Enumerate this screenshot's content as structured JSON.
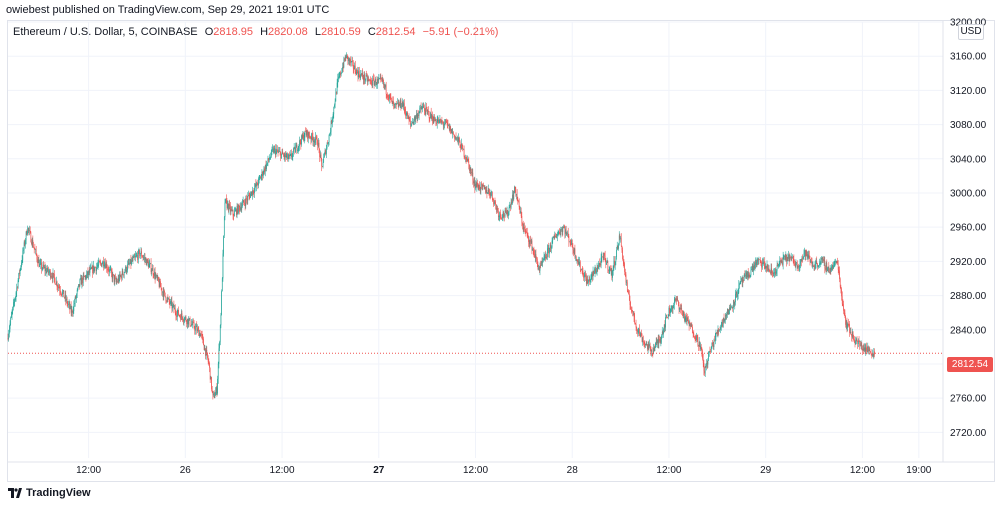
{
  "header": {
    "published_line": "owiebest published on TradingView.com, Sep 29, 2021 19:01 UTC"
  },
  "legend": {
    "symbol": "Ethereum / U.S. Dollar, 5, COINBASE",
    "o_label": "O",
    "o_value": "2818.95",
    "h_label": "H",
    "h_value": "2820.08",
    "l_label": "L",
    "l_value": "2810.59",
    "c_label": "C",
    "c_value": "2812.54",
    "change": "−5.91 (−0.21%)"
  },
  "axis": {
    "currency": "USD",
    "last_price_label": "2812.54"
  },
  "footer": {
    "brand": "TradingView"
  },
  "colors": {
    "up": "#26a69a",
    "down": "#ef5350",
    "grid": "#f0f3fa",
    "last_price_line": "#ef5350"
  },
  "chart_data": {
    "type": "candlestick",
    "title": "Ethereum / U.S. Dollar, 5, COINBASE",
    "ylim": [
      2690,
      3200
    ],
    "y_ticks": [
      2720,
      2760,
      2800,
      2840,
      2880,
      2920,
      2960,
      3000,
      3040,
      3080,
      3120,
      3160,
      3200
    ],
    "y_tick_labels": [
      "2720.00",
      "2760.00",
      "2800.00",
      "2840.00",
      "2880.00",
      "2920.00",
      "2960.00",
      "3000.00",
      "3040.00",
      "3080.00",
      "3120.00",
      "3160.00",
      "3200.00"
    ],
    "x_ticks": [
      "12:00",
      "26",
      "12:00",
      "27",
      "12:00",
      "28",
      "12:00",
      "29",
      "12:00",
      "19:00"
    ],
    "x_tick_hours": [
      12,
      24,
      36,
      48,
      60,
      72,
      84,
      96,
      108,
      115
    ],
    "x_range_hours": [
      2,
      118
    ],
    "grid": true,
    "last_price": 2812.54,
    "path_points": [
      {
        "h": 2.0,
        "p": 2830
      },
      {
        "h": 3.0,
        "p": 2880
      },
      {
        "h": 4.5,
        "p": 2960
      },
      {
        "h": 6.0,
        "p": 2915
      },
      {
        "h": 7.5,
        "p": 2905
      },
      {
        "h": 9.0,
        "p": 2880
      },
      {
        "h": 10.0,
        "p": 2860
      },
      {
        "h": 11.0,
        "p": 2895
      },
      {
        "h": 12.5,
        "p": 2910
      },
      {
        "h": 14.0,
        "p": 2920
      },
      {
        "h": 15.5,
        "p": 2895
      },
      {
        "h": 17.0,
        "p": 2915
      },
      {
        "h": 18.5,
        "p": 2930
      },
      {
        "h": 20.0,
        "p": 2910
      },
      {
        "h": 21.5,
        "p": 2880
      },
      {
        "h": 23.0,
        "p": 2860
      },
      {
        "h": 24.5,
        "p": 2850
      },
      {
        "h": 26.0,
        "p": 2835
      },
      {
        "h": 27.0,
        "p": 2800
      },
      {
        "h": 27.5,
        "p": 2760
      },
      {
        "h": 28.0,
        "p": 2770
      },
      {
        "h": 28.5,
        "p": 2860
      },
      {
        "h": 29.0,
        "p": 2990
      },
      {
        "h": 30.0,
        "p": 2975
      },
      {
        "h": 31.5,
        "p": 2990
      },
      {
        "h": 33.0,
        "p": 3010
      },
      {
        "h": 35.0,
        "p": 3050
      },
      {
        "h": 37.0,
        "p": 3040
      },
      {
        "h": 39.0,
        "p": 3070
      },
      {
        "h": 40.5,
        "p": 3060
      },
      {
        "h": 41.0,
        "p": 3030
      },
      {
        "h": 42.0,
        "p": 3070
      },
      {
        "h": 43.0,
        "p": 3130
      },
      {
        "h": 44.0,
        "p": 3160
      },
      {
        "h": 45.5,
        "p": 3140
      },
      {
        "h": 47.0,
        "p": 3130
      },
      {
        "h": 48.5,
        "p": 3130
      },
      {
        "h": 50.0,
        "p": 3100
      },
      {
        "h": 51.0,
        "p": 3105
      },
      {
        "h": 52.0,
        "p": 3080
      },
      {
        "h": 53.5,
        "p": 3100
      },
      {
        "h": 55.0,
        "p": 3085
      },
      {
        "h": 56.5,
        "p": 3080
      },
      {
        "h": 58.0,
        "p": 3060
      },
      {
        "h": 59.0,
        "p": 3040
      },
      {
        "h": 60.0,
        "p": 3010
      },
      {
        "h": 61.0,
        "p": 3005
      },
      {
        "h": 62.0,
        "p": 3000
      },
      {
        "h": 63.0,
        "p": 2975
      },
      {
        "h": 64.0,
        "p": 2975
      },
      {
        "h": 65.0,
        "p": 3005
      },
      {
        "h": 66.0,
        "p": 2960
      },
      {
        "h": 67.0,
        "p": 2940
      },
      {
        "h": 68.0,
        "p": 2910
      },
      {
        "h": 69.0,
        "p": 2930
      },
      {
        "h": 70.0,
        "p": 2950
      },
      {
        "h": 71.0,
        "p": 2960
      },
      {
        "h": 72.0,
        "p": 2940
      },
      {
        "h": 73.0,
        "p": 2915
      },
      {
        "h": 74.0,
        "p": 2895
      },
      {
        "h": 75.0,
        "p": 2910
      },
      {
        "h": 76.0,
        "p": 2925
      },
      {
        "h": 77.0,
        "p": 2905
      },
      {
        "h": 78.0,
        "p": 2950
      },
      {
        "h": 79.0,
        "p": 2880
      },
      {
        "h": 80.0,
        "p": 2845
      },
      {
        "h": 81.0,
        "p": 2825
      },
      {
        "h": 82.0,
        "p": 2815
      },
      {
        "h": 83.0,
        "p": 2830
      },
      {
        "h": 84.0,
        "p": 2860
      },
      {
        "h": 85.0,
        "p": 2875
      },
      {
        "h": 86.0,
        "p": 2855
      },
      {
        "h": 87.0,
        "p": 2840
      },
      {
        "h": 88.0,
        "p": 2820
      },
      {
        "h": 88.5,
        "p": 2790
      },
      {
        "h": 89.0,
        "p": 2810
      },
      {
        "h": 90.0,
        "p": 2835
      },
      {
        "h": 91.0,
        "p": 2855
      },
      {
        "h": 92.0,
        "p": 2870
      },
      {
        "h": 93.0,
        "p": 2895
      },
      {
        "h": 94.0,
        "p": 2905
      },
      {
        "h": 95.0,
        "p": 2920
      },
      {
        "h": 96.0,
        "p": 2915
      },
      {
        "h": 97.0,
        "p": 2905
      },
      {
        "h": 98.0,
        "p": 2920
      },
      {
        "h": 99.0,
        "p": 2925
      },
      {
        "h": 100.0,
        "p": 2915
      },
      {
        "h": 101.0,
        "p": 2930
      },
      {
        "h": 102.0,
        "p": 2915
      },
      {
        "h": 103.0,
        "p": 2920
      },
      {
        "h": 104.0,
        "p": 2910
      },
      {
        "h": 105.0,
        "p": 2920
      },
      {
        "h": 105.5,
        "p": 2880
      },
      {
        "h": 106.0,
        "p": 2850
      },
      {
        "h": 107.0,
        "p": 2830
      },
      {
        "h": 108.0,
        "p": 2820
      },
      {
        "h": 109.0,
        "p": 2815
      },
      {
        "h": 109.5,
        "p": 2812.54
      }
    ]
  }
}
